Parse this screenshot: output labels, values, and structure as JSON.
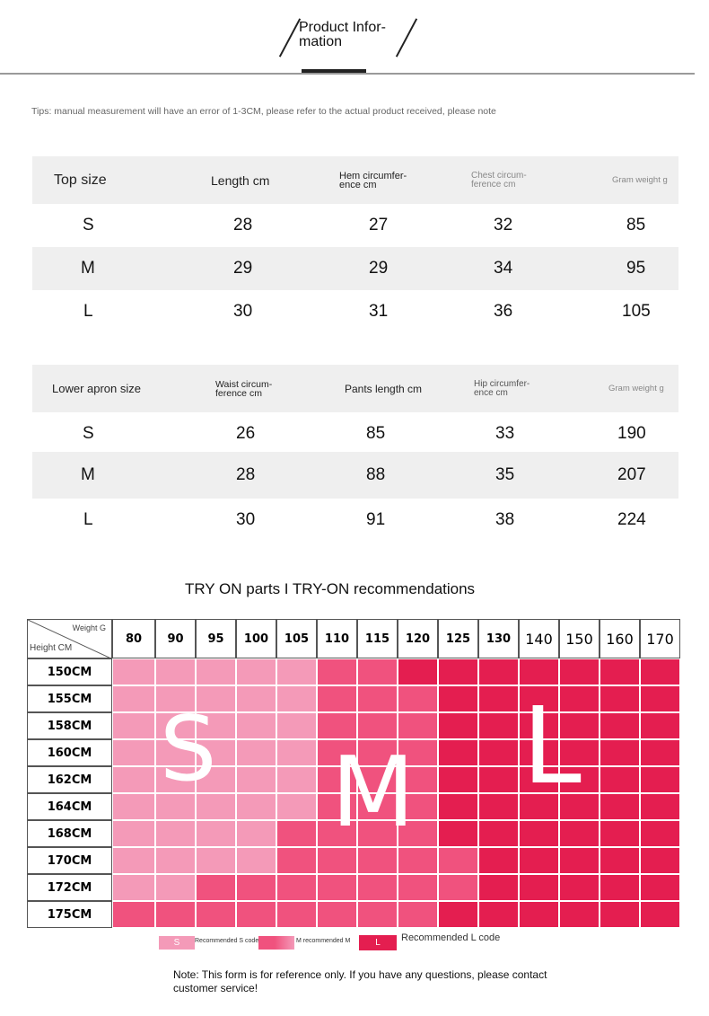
{
  "header": {
    "title": "Product Infor-\nmation"
  },
  "tips": "Tips: manual measurement will have an error of 1-3CM, please refer to the actual product received, please note",
  "top_table": {
    "headers": [
      "Top size",
      "Length cm",
      "Hem circumfer-\nence cm",
      "Chest circum-\nference cm",
      "Gram weight g"
    ],
    "rows": [
      [
        "S",
        "28",
        "27",
        "32",
        "85"
      ],
      [
        "M",
        "29",
        "29",
        "34",
        "95"
      ],
      [
        "L",
        "30",
        "31",
        "36",
        "105"
      ]
    ]
  },
  "lower_table": {
    "headers": [
      "Lower apron size",
      "Waist circum-\nference cm",
      "Pants length cm",
      "Hip circumfer-\nence cm",
      "Gram weight g"
    ],
    "rows": [
      [
        "S",
        "26",
        "85",
        "33",
        "190"
      ],
      [
        "M",
        "28",
        "88",
        "35",
        "207"
      ],
      [
        "L",
        "30",
        "91",
        "38",
        "224"
      ]
    ]
  },
  "try_on": {
    "title": "TRY ON parts I TRY-ON recommendations",
    "corner_weight": "Weight G",
    "corner_height": "Height CM",
    "weights": [
      "80",
      "90",
      "95",
      "100",
      "105",
      "110",
      "115",
      "120",
      "125",
      "130",
      "140",
      "150",
      "160",
      "170"
    ],
    "heights": [
      "150CM",
      "155CM",
      "158CM",
      "160CM",
      "162CM",
      "164CM",
      "168CM",
      "170CM",
      "172CM",
      "175CM"
    ],
    "grid": [
      [
        "S",
        "S",
        "S",
        "S",
        "S",
        "M",
        "M",
        "L",
        "L",
        "L",
        "L",
        "L",
        "L",
        "L"
      ],
      [
        "S",
        "S",
        "S",
        "S",
        "S",
        "M",
        "M",
        "M",
        "L",
        "L",
        "L",
        "L",
        "L",
        "L"
      ],
      [
        "S",
        "S",
        "S",
        "S",
        "S",
        "M",
        "M",
        "M",
        "L",
        "L",
        "L",
        "L",
        "L",
        "L"
      ],
      [
        "S",
        "S",
        "S",
        "S",
        "S",
        "M",
        "M",
        "M",
        "L",
        "L",
        "L",
        "L",
        "L",
        "L"
      ],
      [
        "S",
        "S",
        "S",
        "S",
        "S",
        "M",
        "M",
        "M",
        "L",
        "L",
        "L",
        "L",
        "L",
        "L"
      ],
      [
        "S",
        "S",
        "S",
        "S",
        "S",
        "M",
        "M",
        "M",
        "L",
        "L",
        "L",
        "L",
        "L",
        "L"
      ],
      [
        "S",
        "S",
        "S",
        "S",
        "M",
        "M",
        "M",
        "M",
        "L",
        "L",
        "L",
        "L",
        "L",
        "L"
      ],
      [
        "S",
        "S",
        "S",
        "S",
        "M",
        "M",
        "M",
        "M",
        "M",
        "L",
        "L",
        "L",
        "L",
        "L"
      ],
      [
        "S",
        "S",
        "M",
        "M",
        "M",
        "M",
        "M",
        "M",
        "M",
        "L",
        "L",
        "L",
        "L",
        "L"
      ],
      [
        "M",
        "M",
        "M",
        "M",
        "M",
        "M",
        "M",
        "M",
        "L",
        "L",
        "L",
        "L",
        "L",
        "L"
      ]
    ],
    "big_letters": [
      "S",
      "M",
      "L"
    ],
    "colors": {
      "S": "#f49ab8",
      "M": "#f0527e",
      "L": "#e41e50"
    }
  },
  "legend": [
    {
      "swatch": "S",
      "text": "Recommended S code"
    },
    {
      "swatch": "M",
      "text": "M recommended M"
    },
    {
      "swatch": "L",
      "text": "Recommended L code"
    }
  ],
  "note": "Note: This form is for reference only. If you have any questions, please contact customer service!"
}
